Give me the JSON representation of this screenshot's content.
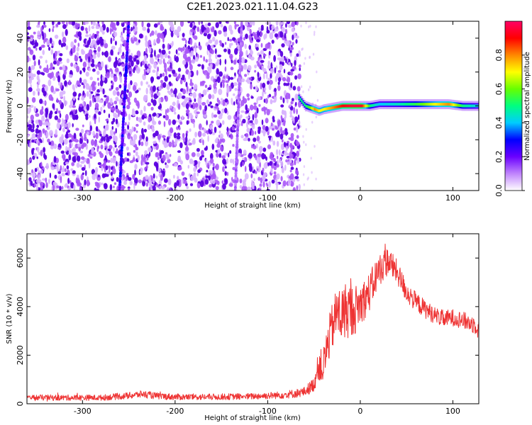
{
  "figure": {
    "title": "C2E1.2023.021.11.04.G23"
  },
  "chart_data": [
    {
      "type": "heatmap",
      "name": "spectrogram",
      "title": "C2E1.2023.021.11.04.G23",
      "xlabel": "Height of straight line (km)",
      "ylabel": "Frequency (Hz)",
      "xlim": [
        -360,
        128
      ],
      "ylim": [
        -50,
        50
      ],
      "x_ticks": [
        -300,
        -200,
        -100,
        0,
        100
      ],
      "y_ticks": [
        -40,
        -20,
        0,
        20,
        40
      ],
      "grid": false,
      "colorbar": {
        "label": "Normalized spectral amplitude",
        "range": [
          0,
          1
        ],
        "ticks": [
          0.0,
          0.2,
          0.4,
          0.6,
          0.8
        ],
        "colormap": [
          "#ffffff",
          "#c084fc",
          "#6a00ff",
          "#0000ff",
          "#00ccff",
          "#00ff80",
          "#66ff00",
          "#ffff00",
          "#ff8800",
          "#ff0000",
          "#ff0066"
        ]
      },
      "noise_region_x": [
        -360,
        -65
      ],
      "noise_features": [
        {
          "x_top": -250,
          "x_bottom": -260,
          "amplitude": 0.3
        },
        {
          "x_top": -128,
          "x_bottom": -135,
          "amplitude": 0.15
        }
      ],
      "signal_track": {
        "x": [
          -67,
          -60,
          -55,
          -50,
          -45,
          -40,
          -30,
          -20,
          -10,
          0,
          10,
          20,
          40,
          60,
          80,
          95,
          110,
          128
        ],
        "y": [
          5,
          0,
          -1,
          -2,
          -3,
          -2,
          -1,
          0,
          0,
          0,
          0,
          1,
          1,
          1,
          1,
          1,
          0,
          0
        ],
        "amplitude": [
          0.5,
          0.5,
          0.6,
          0.8,
          0.7,
          0.7,
          0.8,
          0.9,
          0.95,
          0.95,
          0.5,
          0.4,
          0.45,
          0.55,
          0.7,
          0.8,
          0.5,
          0.4
        ]
      }
    },
    {
      "type": "line",
      "name": "snr",
      "xlabel": "Height of straight line (km)",
      "ylabel": "SNR (10 * v/v)",
      "xlim": [
        -360,
        128
      ],
      "ylim": [
        0,
        7000
      ],
      "x_ticks": [
        -300,
        -200,
        -100,
        0,
        100
      ],
      "y_ticks": [
        0,
        2000,
        4000,
        6000
      ],
      "grid": false,
      "color": "#ee3333",
      "series": [
        {
          "x": [
            -360,
            -320,
            -280,
            -250,
            -235,
            -220,
            -200,
            -160,
            -120,
            -90,
            -70,
            -60,
            -50,
            -45,
            -40,
            -35,
            -30,
            -25,
            -20,
            -15,
            -10,
            -5,
            0,
            10,
            20,
            30,
            40,
            50,
            60,
            70,
            80,
            90,
            100,
            110,
            120,
            128
          ],
          "y": [
            250,
            250,
            250,
            330,
            400,
            320,
            280,
            280,
            300,
            350,
            420,
            500,
            800,
            1600,
            1500,
            2500,
            3200,
            3800,
            3600,
            3900,
            3800,
            3900,
            4100,
            4600,
            5500,
            5900,
            5400,
            4600,
            4200,
            3900,
            3650,
            3500,
            3550,
            3450,
            3300,
            3200
          ],
          "spread": [
            120,
            120,
            120,
            140,
            150,
            140,
            130,
            130,
            130,
            150,
            180,
            200,
            300,
            600,
            800,
            900,
            1000,
            1100,
            1200,
            1200,
            1100,
            1000,
            900,
            800,
            700,
            600,
            500,
            450,
            400,
            380,
            350,
            350,
            350,
            350,
            380,
            400
          ]
        }
      ]
    }
  ]
}
